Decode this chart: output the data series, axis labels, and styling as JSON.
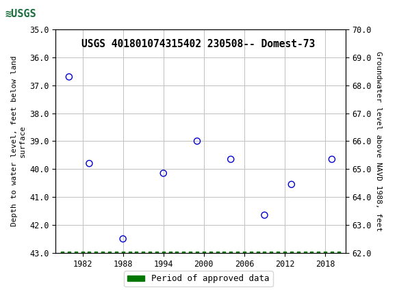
{
  "title": "USGS 401801074315402 230508-- Domest-73",
  "x_data": [
    1980,
    1983,
    1988,
    1994,
    1999,
    2004,
    2009,
    2013,
    2019
  ],
  "y_left_data": [
    36.7,
    39.8,
    42.5,
    40.15,
    39.0,
    39.65,
    41.65,
    40.55,
    39.65
  ],
  "y_left_min": 43.0,
  "y_left_max": 35.0,
  "y_left_ticks": [
    35.0,
    36.0,
    37.0,
    38.0,
    39.0,
    40.0,
    41.0,
    42.0,
    43.0
  ],
  "y_right_min": 62.0,
  "y_right_max": 70.0,
  "y_right_ticks": [
    62.0,
    63.0,
    64.0,
    65.0,
    66.0,
    67.0,
    68.0,
    69.0,
    70.0
  ],
  "x_min": 1978,
  "x_max": 2021,
  "x_ticks": [
    1982,
    1988,
    1994,
    2000,
    2006,
    2012,
    2018
  ],
  "ylabel_left": "Depth to water level, feet below land\nsurface",
  "ylabel_right": "Groundwater level above NAVD 1988, feet",
  "marker_color": "#0000CC",
  "marker_size": 6,
  "green_bar_color": "#007700",
  "background_color": "#ffffff",
  "plot_bg_color": "#ffffff",
  "grid_color": "#c0c0c0",
  "header_color": "#1a6e3c",
  "legend_label": "Period of approved data",
  "green_x_positions": [
    1979,
    1980,
    1981,
    1982,
    1983,
    1984,
    1985,
    1986,
    1987,
    1988,
    1989,
    1990,
    1991,
    1992,
    1993,
    1994,
    1995,
    1996,
    1997,
    1998,
    1999,
    2000,
    2001,
    2002,
    2003,
    2004,
    2005,
    2006,
    2007,
    2008,
    2009,
    2010,
    2011,
    2012,
    2013,
    2014,
    2015,
    2016,
    2017,
    2018,
    2019,
    2020
  ]
}
